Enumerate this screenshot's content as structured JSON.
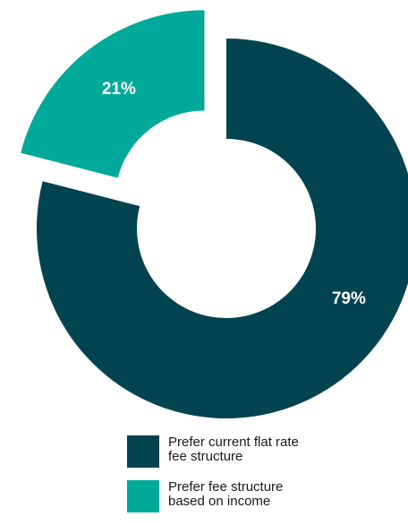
{
  "chart_data": {
    "type": "pie",
    "style": "donut",
    "slices": [
      {
        "label": "Prefer current flat rate\nfee structure",
        "value": 79,
        "display": "79%",
        "color": "#01434f"
      },
      {
        "label": "Prefer fee structure\nbased on income",
        "value": 21,
        "display": "21%",
        "color": "#00a99a",
        "exploded": true
      }
    ],
    "legend_placement": "bottom"
  }
}
